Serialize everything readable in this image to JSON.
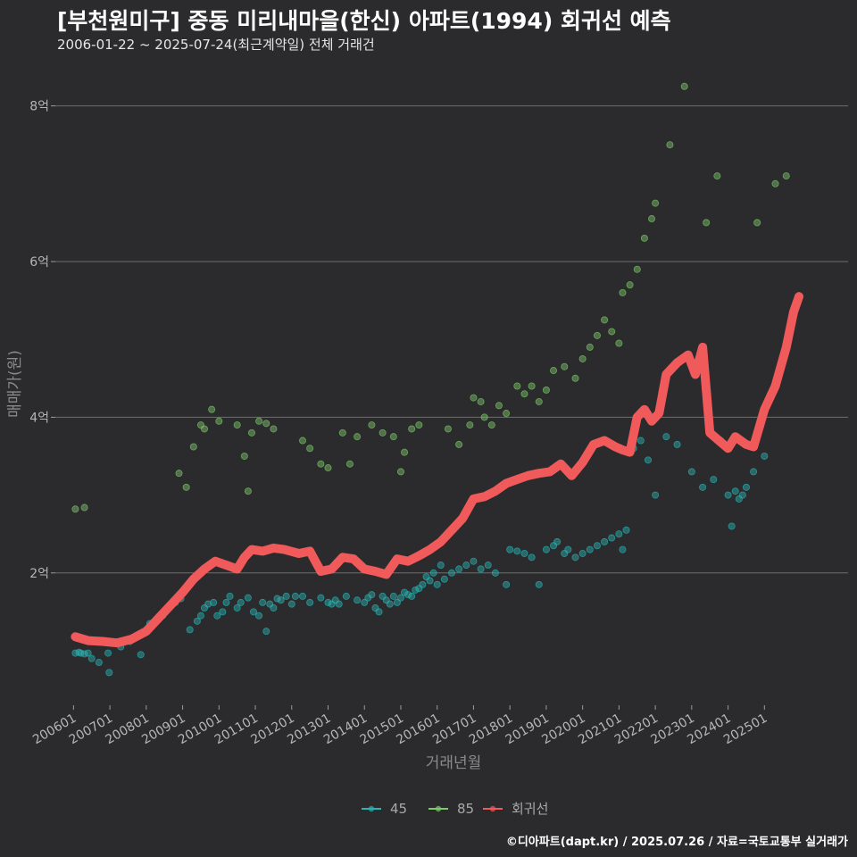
{
  "header": {
    "title": "[부천원미구] 중동 미리내마을(한신) 아파트(1994) 회귀선 예측",
    "subtitle": "2006-01-22 ~ 2025-07-24(최근계약일) 전체 거래건"
  },
  "footer": {
    "caption": "©디아파트(dapt.kr) / 2025.07.26 / 자료=국토교통부 실거래가"
  },
  "colors": {
    "s45": "#2ab3b3",
    "s85": "#7ec96a",
    "trend": "#f05a5a",
    "grid": "#6e6e6e",
    "background": "#2b2b2d"
  },
  "chart_data": {
    "type": "scatter",
    "title": "[부천원미구] 중동 미리내마을(한신) 아파트(1994) 회귀선 예측",
    "xlabel": "거래년월",
    "ylabel": "매매가(원)",
    "xlim": [
      2005.5,
      2027.3
    ],
    "ylim": [
      0.3,
      8.5
    ],
    "yticks": [
      2,
      4,
      6,
      8
    ],
    "ytick_labels": [
      "2억",
      "4억",
      "6억",
      "8억"
    ],
    "xticks": [
      2006,
      2007,
      2008,
      2009,
      2010,
      2011,
      2012,
      2013,
      2014,
      2015,
      2016,
      2017,
      2018,
      2019,
      2020,
      2021,
      2022,
      2023,
      2024,
      2025
    ],
    "xtick_labels": [
      "200601",
      "200701",
      "200801",
      "200901",
      "201001",
      "201101",
      "201201",
      "201301",
      "201401",
      "201501",
      "201601",
      "201701",
      "201801",
      "201901",
      "202001",
      "202101",
      "202201",
      "202301",
      "202401",
      "202501"
    ],
    "legend": [
      "45",
      "85",
      "회귀선"
    ],
    "legend_position": "bottom",
    "series": [
      {
        "name": "45",
        "kind": "points",
        "points": [
          [
            2006.05,
            0.97
          ],
          [
            2006.15,
            0.98
          ],
          [
            2006.2,
            0.97
          ],
          [
            2006.3,
            0.96
          ],
          [
            2006.4,
            0.97
          ],
          [
            2006.5,
            0.9
          ],
          [
            2006.7,
            0.85
          ],
          [
            2006.95,
            0.97
          ],
          [
            2006.98,
            0.72
          ],
          [
            2007.3,
            1.05
          ],
          [
            2007.55,
            1.12
          ],
          [
            2007.7,
            1.18
          ],
          [
            2007.85,
            0.95
          ],
          [
            2008.1,
            1.35
          ],
          [
            2008.3,
            1.4
          ],
          [
            2008.45,
            1.45
          ],
          [
            2008.6,
            1.55
          ],
          [
            2008.8,
            1.62
          ],
          [
            2008.95,
            1.67
          ],
          [
            2009.2,
            1.27
          ],
          [
            2009.4,
            1.38
          ],
          [
            2009.5,
            1.45
          ],
          [
            2009.6,
            1.55
          ],
          [
            2009.7,
            1.6
          ],
          [
            2009.85,
            1.62
          ],
          [
            2009.95,
            1.45
          ],
          [
            2010.1,
            1.5
          ],
          [
            2010.2,
            1.62
          ],
          [
            2010.3,
            1.7
          ],
          [
            2010.5,
            1.55
          ],
          [
            2010.6,
            1.62
          ],
          [
            2010.8,
            1.68
          ],
          [
            2010.95,
            1.5
          ],
          [
            2011.1,
            1.45
          ],
          [
            2011.2,
            1.62
          ],
          [
            2011.3,
            1.25
          ],
          [
            2011.4,
            1.6
          ],
          [
            2011.5,
            1.55
          ],
          [
            2011.6,
            1.67
          ],
          [
            2011.7,
            1.65
          ],
          [
            2011.85,
            1.7
          ],
          [
            2012.0,
            1.6
          ],
          [
            2012.1,
            1.7
          ],
          [
            2012.3,
            1.7
          ],
          [
            2012.5,
            1.62
          ],
          [
            2012.8,
            1.68
          ],
          [
            2013.0,
            1.62
          ],
          [
            2013.1,
            1.6
          ],
          [
            2013.2,
            1.65
          ],
          [
            2013.3,
            1.6
          ],
          [
            2013.5,
            1.7
          ],
          [
            2013.8,
            1.65
          ],
          [
            2014.0,
            1.62
          ],
          [
            2014.1,
            1.68
          ],
          [
            2014.2,
            1.72
          ],
          [
            2014.3,
            1.55
          ],
          [
            2014.4,
            1.5
          ],
          [
            2014.5,
            1.7
          ],
          [
            2014.6,
            1.65
          ],
          [
            2014.7,
            1.6
          ],
          [
            2014.8,
            1.7
          ],
          [
            2014.9,
            1.62
          ],
          [
            2015.0,
            1.68
          ],
          [
            2015.1,
            1.75
          ],
          [
            2015.2,
            1.72
          ],
          [
            2015.3,
            1.7
          ],
          [
            2015.4,
            1.78
          ],
          [
            2015.5,
            1.8
          ],
          [
            2015.6,
            1.85
          ],
          [
            2015.7,
            1.95
          ],
          [
            2015.8,
            1.9
          ],
          [
            2015.9,
            2.0
          ],
          [
            2016.0,
            1.85
          ],
          [
            2016.1,
            2.1
          ],
          [
            2016.2,
            1.92
          ],
          [
            2016.4,
            2.0
          ],
          [
            2016.6,
            2.05
          ],
          [
            2016.8,
            2.1
          ],
          [
            2017.0,
            2.15
          ],
          [
            2017.2,
            2.05
          ],
          [
            2017.4,
            2.1
          ],
          [
            2017.6,
            2.0
          ],
          [
            2017.9,
            1.85
          ],
          [
            2018.0,
            2.3
          ],
          [
            2018.2,
            2.28
          ],
          [
            2018.4,
            2.25
          ],
          [
            2018.6,
            2.2
          ],
          [
            2018.8,
            1.85
          ],
          [
            2019.0,
            2.3
          ],
          [
            2019.2,
            2.35
          ],
          [
            2019.3,
            2.4
          ],
          [
            2019.5,
            2.25
          ],
          [
            2019.6,
            2.3
          ],
          [
            2019.8,
            2.2
          ],
          [
            2020.0,
            2.25
          ],
          [
            2020.2,
            2.3
          ],
          [
            2020.4,
            2.35
          ],
          [
            2020.6,
            2.4
          ],
          [
            2020.8,
            2.45
          ],
          [
            2021.0,
            2.5
          ],
          [
            2021.1,
            2.3
          ],
          [
            2021.2,
            2.55
          ],
          [
            2021.4,
            3.6
          ],
          [
            2021.6,
            3.7
          ],
          [
            2021.8,
            3.45
          ],
          [
            2022.0,
            3.0
          ],
          [
            2022.3,
            3.75
          ],
          [
            2022.6,
            3.65
          ],
          [
            2023.0,
            3.3
          ],
          [
            2023.3,
            3.1
          ],
          [
            2023.6,
            3.2
          ],
          [
            2023.8,
            3.7
          ],
          [
            2024.0,
            3.0
          ],
          [
            2024.1,
            2.6
          ],
          [
            2024.2,
            3.05
          ],
          [
            2024.3,
            2.95
          ],
          [
            2024.4,
            3.0
          ],
          [
            2024.5,
            3.1
          ],
          [
            2024.7,
            3.3
          ],
          [
            2025.0,
            3.5
          ]
        ]
      },
      {
        "name": "85",
        "kind": "points",
        "points": [
          [
            2006.05,
            2.82
          ],
          [
            2006.3,
            2.84
          ],
          [
            2008.9,
            3.28
          ],
          [
            2009.1,
            3.1
          ],
          [
            2009.3,
            3.62
          ],
          [
            2009.5,
            3.9
          ],
          [
            2009.6,
            3.85
          ],
          [
            2009.8,
            4.1
          ],
          [
            2010.0,
            3.95
          ],
          [
            2010.5,
            3.9
          ],
          [
            2010.7,
            3.5
          ],
          [
            2010.8,
            3.05
          ],
          [
            2010.9,
            3.8
          ],
          [
            2011.1,
            3.95
          ],
          [
            2011.3,
            3.92
          ],
          [
            2011.5,
            3.85
          ],
          [
            2012.3,
            3.7
          ],
          [
            2012.5,
            3.6
          ],
          [
            2012.8,
            3.4
          ],
          [
            2013.0,
            3.35
          ],
          [
            2013.4,
            3.8
          ],
          [
            2013.6,
            3.4
          ],
          [
            2013.8,
            3.75
          ],
          [
            2014.2,
            3.9
          ],
          [
            2014.5,
            3.8
          ],
          [
            2014.8,
            3.75
          ],
          [
            2015.0,
            3.3
          ],
          [
            2015.1,
            3.55
          ],
          [
            2015.3,
            3.85
          ],
          [
            2015.5,
            3.9
          ],
          [
            2016.3,
            3.85
          ],
          [
            2016.6,
            3.65
          ],
          [
            2016.9,
            3.9
          ],
          [
            2017.0,
            4.25
          ],
          [
            2017.2,
            4.2
          ],
          [
            2017.3,
            4.0
          ],
          [
            2017.5,
            3.9
          ],
          [
            2017.7,
            4.15
          ],
          [
            2017.9,
            4.05
          ],
          [
            2018.2,
            4.4
          ],
          [
            2018.4,
            4.3
          ],
          [
            2018.6,
            4.4
          ],
          [
            2018.8,
            4.2
          ],
          [
            2019.0,
            4.35
          ],
          [
            2019.2,
            4.6
          ],
          [
            2019.5,
            4.65
          ],
          [
            2019.8,
            4.5
          ],
          [
            2020.0,
            4.75
          ],
          [
            2020.2,
            4.9
          ],
          [
            2020.4,
            5.05
          ],
          [
            2020.6,
            5.25
          ],
          [
            2020.8,
            5.1
          ],
          [
            2021.0,
            4.95
          ],
          [
            2021.1,
            5.6
          ],
          [
            2021.3,
            5.7
          ],
          [
            2021.5,
            5.9
          ],
          [
            2021.7,
            6.3
          ],
          [
            2021.9,
            6.55
          ],
          [
            2022.0,
            6.75
          ],
          [
            2022.4,
            7.5
          ],
          [
            2022.8,
            8.25
          ],
          [
            2023.4,
            6.5
          ],
          [
            2023.7,
            7.1
          ],
          [
            2024.8,
            6.5
          ],
          [
            2025.3,
            7.0
          ],
          [
            2025.6,
            7.1
          ]
        ]
      },
      {
        "name": "회귀선",
        "kind": "line",
        "points": [
          [
            2006.05,
            1.18
          ],
          [
            2006.4,
            1.13
          ],
          [
            2006.8,
            1.12
          ],
          [
            2007.2,
            1.1
          ],
          [
            2007.6,
            1.15
          ],
          [
            2008.0,
            1.25
          ],
          [
            2008.3,
            1.4
          ],
          [
            2008.6,
            1.55
          ],
          [
            2009.0,
            1.75
          ],
          [
            2009.3,
            1.92
          ],
          [
            2009.6,
            2.05
          ],
          [
            2009.9,
            2.15
          ],
          [
            2010.2,
            2.1
          ],
          [
            2010.5,
            2.05
          ],
          [
            2010.7,
            2.2
          ],
          [
            2010.9,
            2.3
          ],
          [
            2011.2,
            2.28
          ],
          [
            2011.5,
            2.32
          ],
          [
            2011.8,
            2.3
          ],
          [
            2012.2,
            2.25
          ],
          [
            2012.5,
            2.28
          ],
          [
            2012.8,
            2.02
          ],
          [
            2013.1,
            2.05
          ],
          [
            2013.4,
            2.2
          ],
          [
            2013.7,
            2.18
          ],
          [
            2014.0,
            2.05
          ],
          [
            2014.3,
            2.02
          ],
          [
            2014.6,
            1.98
          ],
          [
            2014.9,
            2.18
          ],
          [
            2015.2,
            2.15
          ],
          [
            2015.5,
            2.22
          ],
          [
            2015.8,
            2.3
          ],
          [
            2016.1,
            2.4
          ],
          [
            2016.4,
            2.55
          ],
          [
            2016.7,
            2.7
          ],
          [
            2017.0,
            2.95
          ],
          [
            2017.3,
            2.98
          ],
          [
            2017.6,
            3.05
          ],
          [
            2017.9,
            3.15
          ],
          [
            2018.2,
            3.2
          ],
          [
            2018.5,
            3.25
          ],
          [
            2018.8,
            3.28
          ],
          [
            2019.1,
            3.3
          ],
          [
            2019.4,
            3.4
          ],
          [
            2019.7,
            3.25
          ],
          [
            2020.0,
            3.42
          ],
          [
            2020.3,
            3.65
          ],
          [
            2020.6,
            3.7
          ],
          [
            2020.9,
            3.62
          ],
          [
            2021.1,
            3.58
          ],
          [
            2021.3,
            3.55
          ],
          [
            2021.5,
            4.0
          ],
          [
            2021.7,
            4.1
          ],
          [
            2021.9,
            3.95
          ],
          [
            2022.1,
            4.05
          ],
          [
            2022.3,
            4.55
          ],
          [
            2022.6,
            4.7
          ],
          [
            2022.9,
            4.8
          ],
          [
            2023.1,
            4.55
          ],
          [
            2023.3,
            4.9
          ],
          [
            2023.5,
            3.8
          ],
          [
            2023.8,
            3.68
          ],
          [
            2024.0,
            3.6
          ],
          [
            2024.2,
            3.75
          ],
          [
            2024.5,
            3.65
          ],
          [
            2024.7,
            3.62
          ],
          [
            2025.0,
            4.1
          ],
          [
            2025.3,
            4.4
          ],
          [
            2025.6,
            4.9
          ],
          [
            2025.8,
            5.35
          ],
          [
            2025.95,
            5.55
          ]
        ]
      }
    ]
  }
}
